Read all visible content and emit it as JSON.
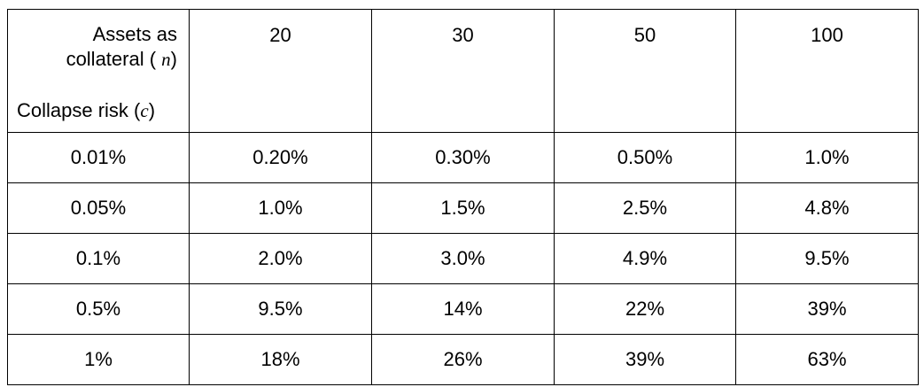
{
  "table": {
    "corner": {
      "columns_label_line1": "Assets as",
      "columns_label_line2": "collateral (",
      "columns_var": "n",
      "columns_close": ")",
      "rows_label": "Collapse risk (",
      "rows_var": "c",
      "rows_close": ")"
    },
    "column_headers": [
      "20",
      "30",
      "50",
      "100"
    ],
    "rows": [
      {
        "label": "0.01%",
        "cells": [
          "0.20%",
          "0.30%",
          "0.50%",
          "1.0%"
        ]
      },
      {
        "label": "0.05%",
        "cells": [
          "1.0%",
          "1.5%",
          "2.5%",
          "4.8%"
        ]
      },
      {
        "label": "0.1%",
        "cells": [
          "2.0%",
          "3.0%",
          "4.9%",
          "9.5%"
        ]
      },
      {
        "label": "0.5%",
        "cells": [
          "9.5%",
          "14%",
          "22%",
          "39%"
        ]
      },
      {
        "label": "1%",
        "cells": [
          "18%",
          "26%",
          "39%",
          "63%"
        ]
      }
    ]
  }
}
